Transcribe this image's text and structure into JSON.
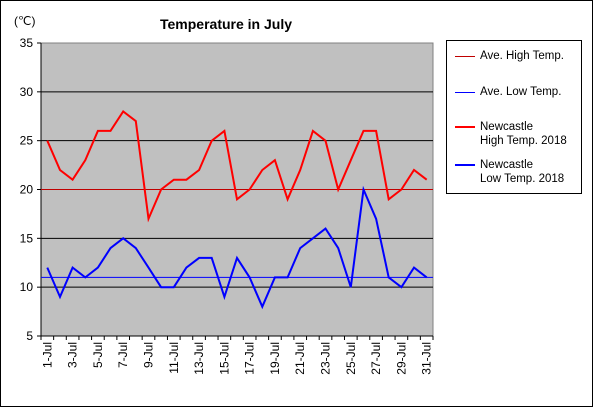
{
  "chart_data": {
    "type": "line",
    "title": "Temperature in July",
    "unit_label": "(℃)",
    "ylim": [
      5,
      35
    ],
    "yticks": [
      "5",
      "10",
      "15",
      "20",
      "25",
      "30",
      "35"
    ],
    "x": [
      "1-Jul",
      "2-Jul",
      "3-Jul",
      "4-Jul",
      "5-Jul",
      "6-Jul",
      "7-Jul",
      "8-Jul",
      "9-Jul",
      "10-Jul",
      "11-Jul",
      "12-Jul",
      "13-Jul",
      "14-Jul",
      "15-Jul",
      "16-Jul",
      "17-Jul",
      "18-Jul",
      "19-Jul",
      "20-Jul",
      "21-Jul",
      "22-Jul",
      "23-Jul",
      "24-Jul",
      "25-Jul",
      "26-Jul",
      "27-Jul",
      "28-Jul",
      "29-Jul",
      "30-Jul",
      "31-Jul"
    ],
    "xtick_labels": [
      "1-Jul",
      "3-Jul",
      "5-Jul",
      "7-Jul",
      "9-Jul",
      "11-Jul",
      "13-Jul",
      "15-Jul",
      "17-Jul",
      "19-Jul",
      "21-Jul",
      "23-Jul",
      "25-Jul",
      "27-Jul",
      "29-Jul",
      "31-Jul"
    ],
    "grid": true,
    "legend_position": "right",
    "series": [
      {
        "name": "Ave. High Temp.",
        "color": "#c00000",
        "style": "constant",
        "values": [
          20,
          20,
          20,
          20,
          20,
          20,
          20,
          20,
          20,
          20,
          20,
          20,
          20,
          20,
          20,
          20,
          20,
          20,
          20,
          20,
          20,
          20,
          20,
          20,
          20,
          20,
          20,
          20,
          20,
          20,
          20
        ]
      },
      {
        "name": "Ave. Low Temp.",
        "color": "#0000ff",
        "style": "constant",
        "values": [
          11,
          11,
          11,
          11,
          11,
          11,
          11,
          11,
          11,
          11,
          11,
          11,
          11,
          11,
          11,
          11,
          11,
          11,
          11,
          11,
          11,
          11,
          11,
          11,
          11,
          11,
          11,
          11,
          11,
          11,
          11
        ]
      },
      {
        "name": "Newcastle\nHigh Temp. 2018",
        "color": "#ff0000",
        "style": "bold",
        "values": [
          25,
          22,
          21,
          23,
          26,
          26,
          28,
          27,
          17,
          20,
          21,
          21,
          22,
          25,
          26,
          19,
          20,
          22,
          23,
          19,
          22,
          26,
          25,
          20,
          23,
          26,
          26,
          19,
          20,
          22,
          21
        ]
      },
      {
        "name": "Newcastle\nLow Temp. 2018",
        "color": "#0000ff",
        "style": "bold",
        "values": [
          12,
          9,
          12,
          11,
          12,
          14,
          15,
          14,
          12,
          10,
          10,
          12,
          13,
          13,
          9,
          13,
          11,
          8,
          11,
          11,
          14,
          15,
          16,
          14,
          10,
          20,
          17,
          11,
          10,
          12,
          11
        ]
      }
    ]
  }
}
